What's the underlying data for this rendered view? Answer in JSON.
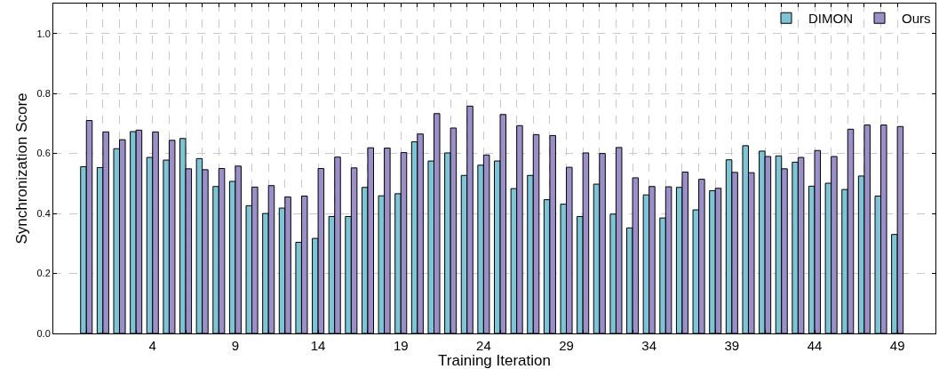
{
  "chart_data": {
    "type": "bar",
    "xlabel": "Training Iteration",
    "ylabel": "Synchronization Score",
    "x": [
      0,
      1,
      2,
      3,
      4,
      5,
      6,
      7,
      8,
      9,
      10,
      11,
      12,
      13,
      14,
      15,
      16,
      17,
      18,
      19,
      20,
      21,
      22,
      23,
      24,
      25,
      26,
      27,
      28,
      29,
      30,
      31,
      32,
      33,
      34,
      35,
      36,
      37,
      38,
      39,
      40,
      41,
      42,
      43,
      44,
      45,
      46,
      47,
      48,
      49
    ],
    "series": [
      {
        "name": "DIMON",
        "color": "#7fc4d4",
        "values": [
          0.556,
          0.553,
          0.616,
          0.673,
          0.587,
          0.578,
          0.65,
          0.583,
          0.49,
          0.507,
          0.426,
          0.4,
          0.418,
          0.304,
          0.317,
          0.39,
          0.39,
          0.487,
          0.459,
          0.466,
          0.639,
          0.575,
          0.602,
          0.527,
          0.561,
          0.575,
          0.483,
          0.527,
          0.446,
          0.431,
          0.39,
          0.498,
          0.398,
          0.352,
          0.462,
          0.385,
          0.487,
          0.412,
          0.476,
          0.579,
          0.626,
          0.608,
          0.592,
          0.571,
          0.491,
          0.501,
          0.48,
          0.525,
          0.458,
          0.33
        ]
      },
      {
        "name": "Ours",
        "color": "#9b8fc8",
        "values": [
          0.71,
          0.672,
          0.646,
          0.678,
          0.672,
          0.644,
          0.549,
          0.546,
          0.55,
          0.558,
          0.488,
          0.493,
          0.455,
          0.458,
          0.55,
          0.588,
          0.552,
          0.619,
          0.618,
          0.603,
          0.665,
          0.733,
          0.685,
          0.758,
          0.595,
          0.73,
          0.693,
          0.663,
          0.66,
          0.554,
          0.602,
          0.6,
          0.62,
          0.519,
          0.49,
          0.489,
          0.538,
          0.514,
          0.484,
          0.537,
          0.536,
          0.59,
          0.549,
          0.587,
          0.61,
          0.59,
          0.681,
          0.695,
          0.695,
          0.69
        ]
      }
    ],
    "xlim": [
      -2,
      51.3
    ],
    "xticks": [
      {
        "value": 0,
        "label": null
      },
      {
        "value": 1,
        "label": null
      },
      {
        "value": 2,
        "label": null
      },
      {
        "value": 3,
        "label": null
      },
      4,
      {
        "value": 5,
        "label": null
      },
      {
        "value": 6,
        "label": null
      },
      {
        "value": 7,
        "label": null
      },
      {
        "value": 8,
        "label": null
      },
      9,
      {
        "value": 10,
        "label": null
      },
      {
        "value": 11,
        "label": null
      },
      {
        "value": 12,
        "label": null
      },
      {
        "value": 13,
        "label": null
      },
      14,
      {
        "value": 15,
        "label": null
      },
      {
        "value": 16,
        "label": null
      },
      {
        "value": 17,
        "label": null
      },
      {
        "value": 18,
        "label": null
      },
      19,
      {
        "value": 20,
        "label": null
      },
      {
        "value": 21,
        "label": null
      },
      {
        "value": 22,
        "label": null
      },
      {
        "value": 23,
        "label": null
      },
      24,
      {
        "value": 25,
        "label": null
      },
      {
        "value": 26,
        "label": null
      },
      {
        "value": 27,
        "label": null
      },
      {
        "value": 28,
        "label": null
      },
      29,
      {
        "value": 30,
        "label": null
      },
      {
        "value": 31,
        "label": null
      },
      {
        "value": 32,
        "label": null
      },
      {
        "value": 33,
        "label": null
      },
      34,
      {
        "value": 35,
        "label": null
      },
      {
        "value": 36,
        "label": null
      },
      {
        "value": 37,
        "label": null
      },
      {
        "value": 38,
        "label": null
      },
      39,
      {
        "value": 40,
        "label": null
      },
      {
        "value": 41,
        "label": null
      },
      {
        "value": 42,
        "label": null
      },
      {
        "value": 43,
        "label": null
      },
      44,
      {
        "value": 45,
        "label": null
      },
      {
        "value": 46,
        "label": null
      },
      {
        "value": 47,
        "label": null
      },
      {
        "value": 48,
        "label": null
      },
      49
    ],
    "ylim": [
      0,
      1.1
    ],
    "yticks": [
      {
        "value": 0,
        "label": "0.0"
      },
      {
        "value": 0.2,
        "label": "0.2"
      },
      {
        "value": 0.4,
        "label": "0.4"
      },
      {
        "value": 0.6,
        "label": "0.6"
      },
      {
        "value": 0.8,
        "label": "0.8"
      },
      {
        "value": 1,
        "label": "1.0"
      }
    ],
    "grid": true,
    "legend": "top right"
  }
}
